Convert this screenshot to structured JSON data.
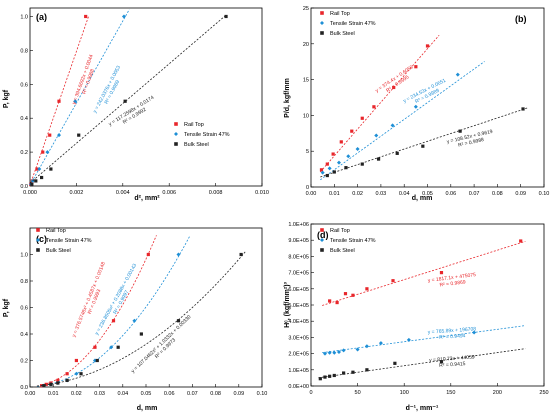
{
  "colors": {
    "rail": "#e8262b",
    "tensile": "#1e8fd6",
    "bulk": "#222222",
    "frame": "#000000"
  },
  "chart_data": [
    {
      "type": "scatter",
      "panel_label": "(a)",
      "xlabel": "d², mm²",
      "ylabel": "P, kgf",
      "xlim": [
        0,
        0.01
      ],
      "ylim": [
        0,
        1.05
      ],
      "xticks": [
        "0.000",
        "0.002",
        "0.004",
        "0.006",
        "0.008",
        "0.010"
      ],
      "yticks": [
        "0.0",
        "0.2",
        "0.4",
        "0.6",
        "0.8",
        "1.0"
      ],
      "legend_position": "center-right",
      "series": [
        {
          "name": "Rail Top",
          "marker": "square",
          "color": "#e8262b",
          "x": [
            3e-05,
            0.0001,
            0.0003,
            0.00055,
            0.00085,
            0.00125,
            0.0024
          ],
          "y": [
            0.01,
            0.03,
            0.1,
            0.2,
            0.3,
            0.5,
            1.0
          ],
          "fit": {
            "eq": "y = 394.6692x + 0.0044",
            "r2": "R² = 0.9988",
            "a": 394.6692,
            "b": 0.0044,
            "from": 0,
            "to": 0.00254
          }
        },
        {
          "name": "Tensile Strain 47%",
          "marker": "diamond",
          "color": "#1e8fd6",
          "x": [
            4e-05,
            0.00012,
            0.0004,
            0.00075,
            0.00125,
            0.00195,
            0.00405
          ],
          "y": [
            0.01,
            0.03,
            0.1,
            0.2,
            0.3,
            0.5,
            1.0
          ],
          "fit": {
            "eq": "y = 242.0376x + 0.0053",
            "r2": "R² = 0.9989",
            "a": 242.0376,
            "b": 0.0053,
            "from": 0,
            "to": 0.00428
          }
        },
        {
          "name": "Bulk Steel",
          "marker": "square",
          "color": "#222222",
          "x": [
            8e-05,
            0.00025,
            0.0005,
            0.0009,
            0.0021,
            0.0041,
            0.00845
          ],
          "y": [
            0.01,
            0.03,
            0.05,
            0.1,
            0.3,
            0.5,
            1.0
          ],
          "fit": {
            "eq": "y = 117.2598x + 0.0174",
            "r2": "R² = 0.9992",
            "a": 117.2598,
            "b": 0.0174,
            "from": 0,
            "to": 0.00848
          }
        }
      ]
    },
    {
      "type": "scatter",
      "panel_label": "(b)",
      "xlabel": "d, mm",
      "ylabel": "P/d, kgf/mm",
      "xlim": [
        0,
        0.1
      ],
      "ylim": [
        0,
        25
      ],
      "xticks": [
        "0.00",
        "0.01",
        "0.02",
        "0.03",
        "0.04",
        "0.05",
        "0.06",
        "0.07",
        "0.08",
        "0.09",
        "0.10"
      ],
      "yticks": [
        "0",
        "5",
        "10",
        "15",
        "20",
        "25"
      ],
      "legend_position": "top-left",
      "series": [
        {
          "name": "Rail Top",
          "marker": "square",
          "color": "#e8262b",
          "x": [
            0.0045,
            0.007,
            0.0095,
            0.013,
            0.0175,
            0.022,
            0.027,
            0.0355,
            0.045,
            0.05
          ],
          "y": [
            2.4,
            3.2,
            4.6,
            6.3,
            7.8,
            9.6,
            11.2,
            13.9,
            16.8,
            19.7
          ],
          "fit": {
            "eq": "y = 374.4x + 0.6050",
            "r2": "R² = 0.9995",
            "a": 374.4,
            "b": 0.605,
            "from": 0.004,
            "to": 0.055
          }
        },
        {
          "name": "Tensile Strain 47%",
          "marker": "diamond",
          "color": "#1e8fd6",
          "x": [
            0.005,
            0.008,
            0.012,
            0.016,
            0.02,
            0.028,
            0.035,
            0.045,
            0.063
          ],
          "y": [
            2.0,
            2.6,
            3.4,
            4.3,
            5.3,
            7.2,
            8.6,
            11.2,
            15.7
          ],
          "fit": {
            "eq": "y = 234.53x + 0.0651",
            "r2": "R² = 0.9989",
            "a": 234.53,
            "b": 0.0651,
            "from": 0.004,
            "to": 0.0745
          }
        },
        {
          "name": "Bulk Steel",
          "marker": "square",
          "color": "#222222",
          "x": [
            0.007,
            0.01,
            0.015,
            0.022,
            0.029,
            0.037,
            0.048,
            0.064,
            0.091
          ],
          "y": [
            1.6,
            2.1,
            2.7,
            3.2,
            3.9,
            4.7,
            5.7,
            7.8,
            10.9
          ],
          "fit": {
            "eq": "y = 108.52x + 0.9619",
            "r2": "R² = 0.9988",
            "a": 108.52,
            "b": 0.9619,
            "from": 0.004,
            "to": 0.093
          }
        }
      ]
    },
    {
      "type": "scatter",
      "panel_label": "(c)",
      "xlabel": "d, mm",
      "ylabel": "P, kgf",
      "xlim": [
        0,
        0.1
      ],
      "ylim": [
        0,
        1.2
      ],
      "xticks": [
        "0.00",
        "0.01",
        "0.02",
        "0.03",
        "0.04",
        "0.05",
        "0.06",
        "0.07",
        "0.08",
        "0.09",
        "0.10"
      ],
      "yticks": [
        "0.0",
        "0.2",
        "0.4",
        "0.6",
        "0.8",
        "1.0"
      ],
      "legend_position": "top-left",
      "series": [
        {
          "name": "Rail Top",
          "marker": "square",
          "color": "#e8262b",
          "x": [
            0.005,
            0.007,
            0.009,
            0.012,
            0.016,
            0.02,
            0.028,
            0.036,
            0.051
          ],
          "y": [
            0.01,
            0.02,
            0.03,
            0.05,
            0.1,
            0.2,
            0.3,
            0.5,
            1.0
          ],
          "fit": {
            "eq": "y = 376.5748x² + 0.4587x + 0.00148",
            "r2": "R² = 0.9993",
            "a": 376.5748,
            "b": 0.4587,
            "c": 0.00148,
            "from": 0.003,
            "to": 0.0545
          }
        },
        {
          "name": "Tensile Strain 47%",
          "marker": "diamond",
          "color": "#1e8fd6",
          "x": [
            0.006,
            0.009,
            0.012,
            0.016,
            0.02,
            0.028,
            0.035,
            0.045,
            0.064
          ],
          "y": [
            0.01,
            0.02,
            0.03,
            0.05,
            0.1,
            0.2,
            0.3,
            0.5,
            1.0
          ],
          "fit": {
            "eq": "y = 236.8505x² + 0.2088x + 0.00143",
            "r2": "R² = 0.9997",
            "a": 236.8505,
            "b": 0.2088,
            "c": 0.00143,
            "from": 0.003,
            "to": 0.069
          }
        },
        {
          "name": "Bulk Steel",
          "marker": "square",
          "color": "#222222",
          "x": [
            0.006,
            0.009,
            0.012,
            0.016,
            0.022,
            0.029,
            0.038,
            0.048,
            0.064,
            0.091
          ],
          "y": [
            0.01,
            0.02,
            0.03,
            0.05,
            0.1,
            0.2,
            0.3,
            0.4,
            0.5,
            1.0
          ],
          "fit": {
            "eq": "y = 107.0462x² + 1.0332x + 0.00330",
            "r2": "R² = 0.9973",
            "a": 107.0462,
            "b": 1.0332,
            "c": 0.0033,
            "from": 0.003,
            "to": 0.093
          }
        }
      ]
    },
    {
      "type": "scatter",
      "panel_label": "(d)",
      "xlabel": "d⁻¹, mm⁻¹",
      "ylabel": "Hᶜ, (kgf/mm²)³",
      "xlim": [
        0,
        250
      ],
      "ylim": [
        0,
        1000000
      ],
      "xticks": [
        "0",
        "50",
        "100",
        "150",
        "200",
        "250"
      ],
      "yticks": [
        "0.0E+00",
        "1.0E+05",
        "2.0E+05",
        "3.0E+05",
        "4.0E+05",
        "5.0E+05",
        "6.0E+05",
        "7.0E+05",
        "8.0E+05",
        "9.0E+05",
        "1.0E+06"
      ],
      "legend_position": "top-left",
      "series": [
        {
          "name": "Rail Top",
          "marker": "square",
          "color": "#e8262b",
          "x": [
            20,
            28,
            37,
            45,
            60,
            88,
            140,
            225
          ],
          "y": [
            525000,
            515000,
            570000,
            560000,
            600000,
            650000,
            700000,
            895000
          ],
          "fit": {
            "eq": "y = 1817.1x + 475075",
            "r2": "R² = 0.9869",
            "a": 1817.1,
            "b": 475075,
            "from": 12,
            "to": 230
          }
        },
        {
          "name": "Tensile Strain 47%",
          "marker": "diamond",
          "color": "#1e8fd6",
          "x": [
            15,
            20,
            25,
            30,
            35,
            50,
            60,
            75,
            105,
            175
          ],
          "y": [
            200000,
            205000,
            205000,
            210000,
            220000,
            225000,
            245000,
            265000,
            285000,
            330000
          ],
          "fit": {
            "eq": "y = 765.89x + 196708",
            "r2": "R² = 0.9494",
            "a": 765.89,
            "b": 196708,
            "from": 12,
            "to": 230
          }
        },
        {
          "name": "Bulk Steel",
          "marker": "square",
          "color": "#222222",
          "x": [
            10,
            15,
            20,
            25,
            35,
            45,
            60,
            90,
            140
          ],
          "y": [
            45000,
            55000,
            60000,
            65000,
            80000,
            85000,
            100000,
            140000,
            150000
          ],
          "fit": {
            "eq": "y = 810.73x + 44059",
            "r2": "R² = 0.9415",
            "a": 810.73,
            "b": 44059,
            "from": 8,
            "to": 230
          }
        }
      ]
    }
  ]
}
